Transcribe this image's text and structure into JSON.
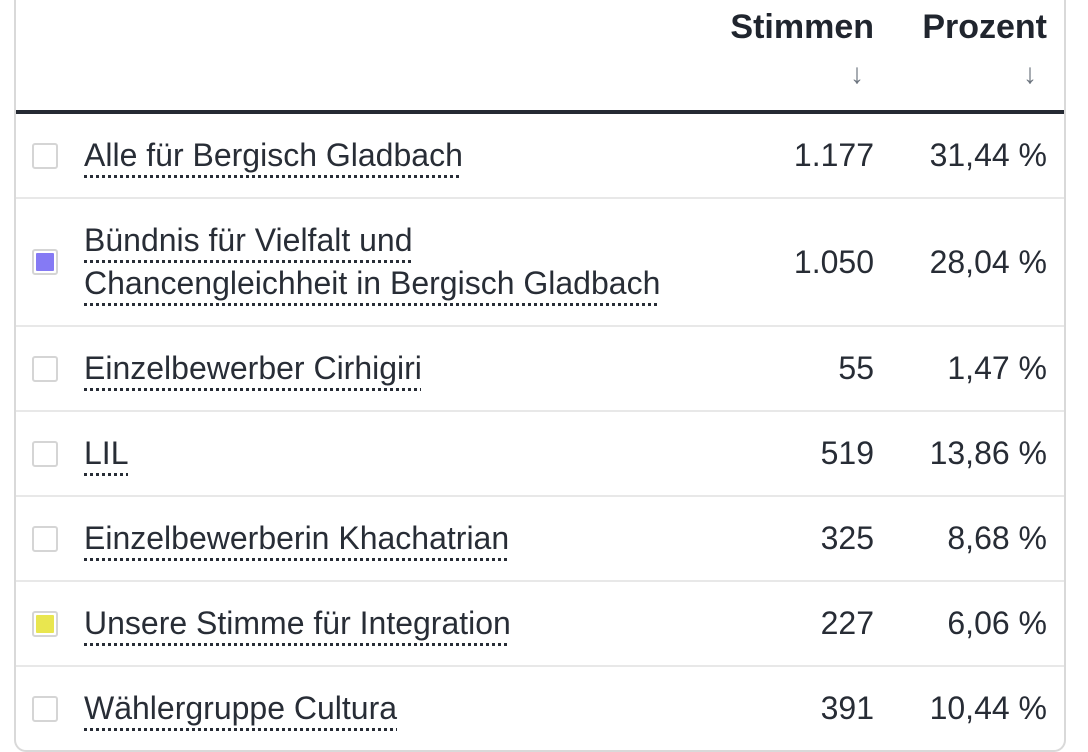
{
  "table": {
    "headers": {
      "stimmen_label": "Stimmen",
      "prozent_label": "Prozent",
      "sort_icon": "↓"
    },
    "rows": [
      {
        "name": "Alle für Bergisch Gladbach",
        "stimmen": "1.177",
        "prozent": "31,44 %",
        "checked": false,
        "color": null
      },
      {
        "name": "Bündnis für Vielfalt und Chancengleichheit in Bergisch Gladbach",
        "stimmen": "1.050",
        "prozent": "28,04 %",
        "checked": true,
        "color": "#857af4"
      },
      {
        "name": "Einzelbewerber Cirhigiri",
        "stimmen": "55",
        "prozent": "1,47 %",
        "checked": false,
        "color": null
      },
      {
        "name": "LIL",
        "stimmen": "519",
        "prozent": "13,86 %",
        "checked": false,
        "color": null
      },
      {
        "name": "Einzelbewerberin Khachatrian",
        "stimmen": "325",
        "prozent": "8,68 %",
        "checked": false,
        "color": null
      },
      {
        "name": "Unsere Stimme für Integration",
        "stimmen": "227",
        "prozent": "6,06 %",
        "checked": true,
        "color": "#e9e64f"
      },
      {
        "name": "Wählergruppe Cultura",
        "stimmen": "391",
        "prozent": "10,44 %",
        "checked": false,
        "color": null
      }
    ]
  },
  "colors": {
    "text": "#272c35",
    "header_border": "#252a33",
    "row_divider": "#e8e8e8",
    "container_border": "#d9d9d9",
    "sort_arrow": "#6d757f",
    "swatch_purple": "#857af4",
    "swatch_yellow": "#e9e64f"
  }
}
